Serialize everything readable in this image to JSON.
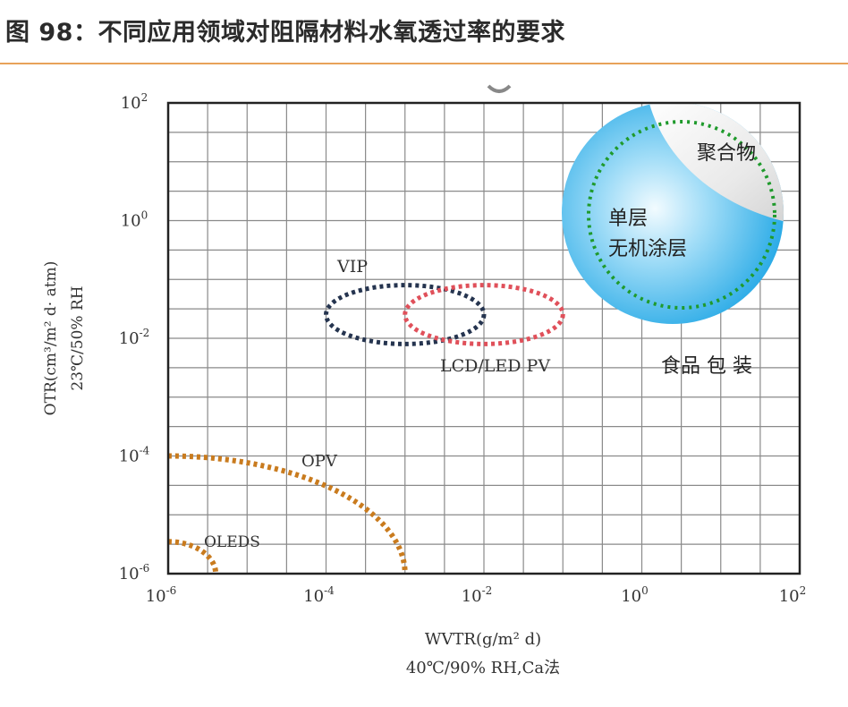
{
  "title": "图 98：不同应用领域对阻隔材料水氧透过率的要求",
  "chart_data": {
    "type": "scatter",
    "title": "",
    "x_axis": {
      "label_line1": "WVTR(g/m² d)",
      "label_line2": "40℃/90% RH,Ca法",
      "scale": "log",
      "range": [
        1e-06,
        100
      ],
      "ticks": [
        {
          "value": 1e-06,
          "base": "10",
          "exp": "-6"
        },
        {
          "value": 0.0001,
          "base": "10",
          "exp": "-4"
        },
        {
          "value": 0.01,
          "base": "10",
          "exp": "-2"
        },
        {
          "value": 1,
          "base": "10",
          "exp": "0"
        },
        {
          "value": 100,
          "base": "10",
          "exp": "2"
        }
      ]
    },
    "y_axis": {
      "label_line1": "OTR(cm³/m² d· atm)",
      "label_line2": "23℃/50% RH",
      "scale": "log",
      "range": [
        1e-06,
        100
      ],
      "ticks": [
        {
          "value": 1e-06,
          "base": "10",
          "exp": "-6"
        },
        {
          "value": 0.0001,
          "base": "10",
          "exp": "-4"
        },
        {
          "value": 0.01,
          "base": "10",
          "exp": "-2"
        },
        {
          "value": 1,
          "base": "10",
          "exp": "0"
        },
        {
          "value": 100,
          "base": "10",
          "exp": "2"
        }
      ]
    },
    "grid": true,
    "regions": [
      {
        "name": "VIP",
        "shape": "ellipse",
        "x_range": [
          0.0001,
          0.01
        ],
        "y_range": [
          0.008,
          0.08
        ],
        "color": "#25344f",
        "label": "VIP"
      },
      {
        "name": "LCD/LED PV",
        "shape": "ellipse",
        "x_range": [
          0.001,
          0.1
        ],
        "y_range": [
          0.008,
          0.08
        ],
        "color": "#e0505a",
        "label": "LCD/LED PV"
      },
      {
        "name": "OPV",
        "shape": "quarter-curve",
        "x_max": 0.001,
        "y_max": 0.0001,
        "color": "#c97b1e",
        "label": "OPV"
      },
      {
        "name": "OLEDS",
        "shape": "quarter-curve",
        "x_max": 4e-06,
        "y_max": 3.5e-06,
        "color": "#c97b1e",
        "label": "OLEDS"
      },
      {
        "name": "食品包装",
        "shape": "circle",
        "color": "#3ab6ea",
        "label": "食品 包 装",
        "inner_label_1": "单层",
        "inner_label_2": "无机涂层",
        "inner_ring_color": "#1f9a2c"
      },
      {
        "name": "聚合物",
        "shape": "corner-region",
        "color": "#e6e6e6",
        "label": "聚合物"
      }
    ]
  }
}
